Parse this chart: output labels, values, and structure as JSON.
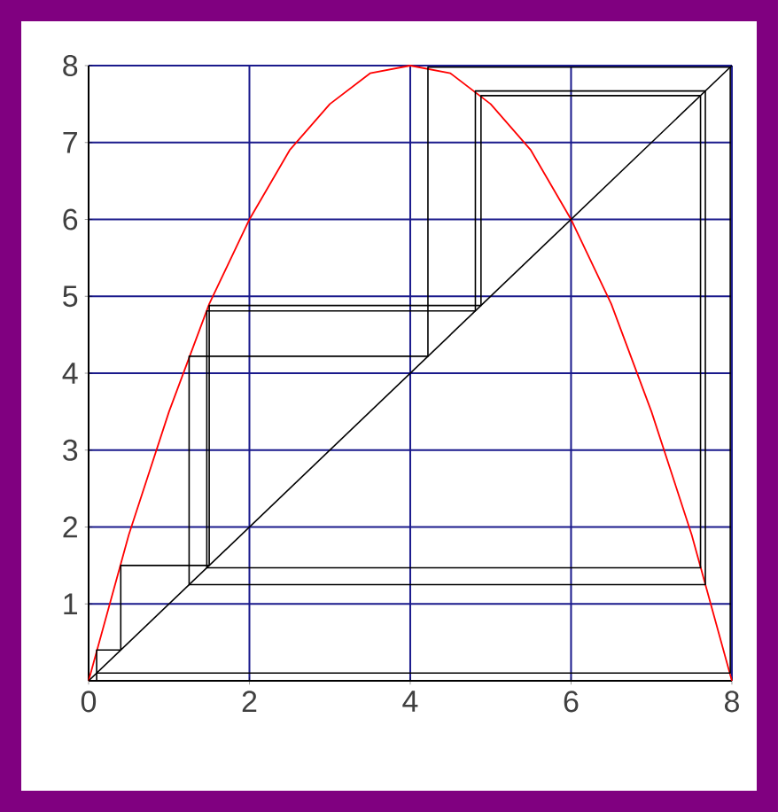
{
  "chart_data": {
    "type": "line",
    "xlim": [
      0,
      8
    ],
    "ylim": [
      0,
      8
    ],
    "xticks": [
      0,
      2,
      4,
      6,
      8
    ],
    "yticks": [
      1,
      2,
      3,
      4,
      5,
      6,
      7,
      8
    ],
    "grid": true,
    "marker": "none",
    "series": [
      {
        "color": "#ff0000",
        "x": [
          0,
          0.5,
          1,
          1.5,
          2,
          2.5,
          3,
          3.5,
          4,
          4.5,
          5,
          5.5,
          6,
          6.5,
          7,
          7.5,
          8
        ],
        "values": [
          0,
          1.9,
          3.5,
          4.9,
          6,
          6.9,
          7.5,
          7.9,
          8,
          7.9,
          7.5,
          6.9,
          6,
          4.9,
          3.5,
          1.9,
          0
        ]
      },
      {
        "color": "#000000",
        "x": [
          0,
          8
        ],
        "values": [
          0,
          8
        ]
      },
      {
        "color": "#000000",
        "x": [
          0.1,
          0.1,
          0.4,
          0.4,
          1.5,
          1.5,
          4.88,
          4.88,
          7.61,
          7.61,
          1.47,
          1.47,
          4.81,
          4.81,
          7.67,
          7.67,
          1.25,
          1.25,
          4.22,
          4.22,
          7.98,
          7.98,
          0.1
        ],
        "values": [
          0,
          0.4,
          0.4,
          1.5,
          1.5,
          4.88,
          4.88,
          7.61,
          7.61,
          1.47,
          1.47,
          4.81,
          4.81,
          7.67,
          7.67,
          1.25,
          1.25,
          4.22,
          4.22,
          7.98,
          7.98,
          0.1,
          0.1
        ]
      }
    ]
  }
}
